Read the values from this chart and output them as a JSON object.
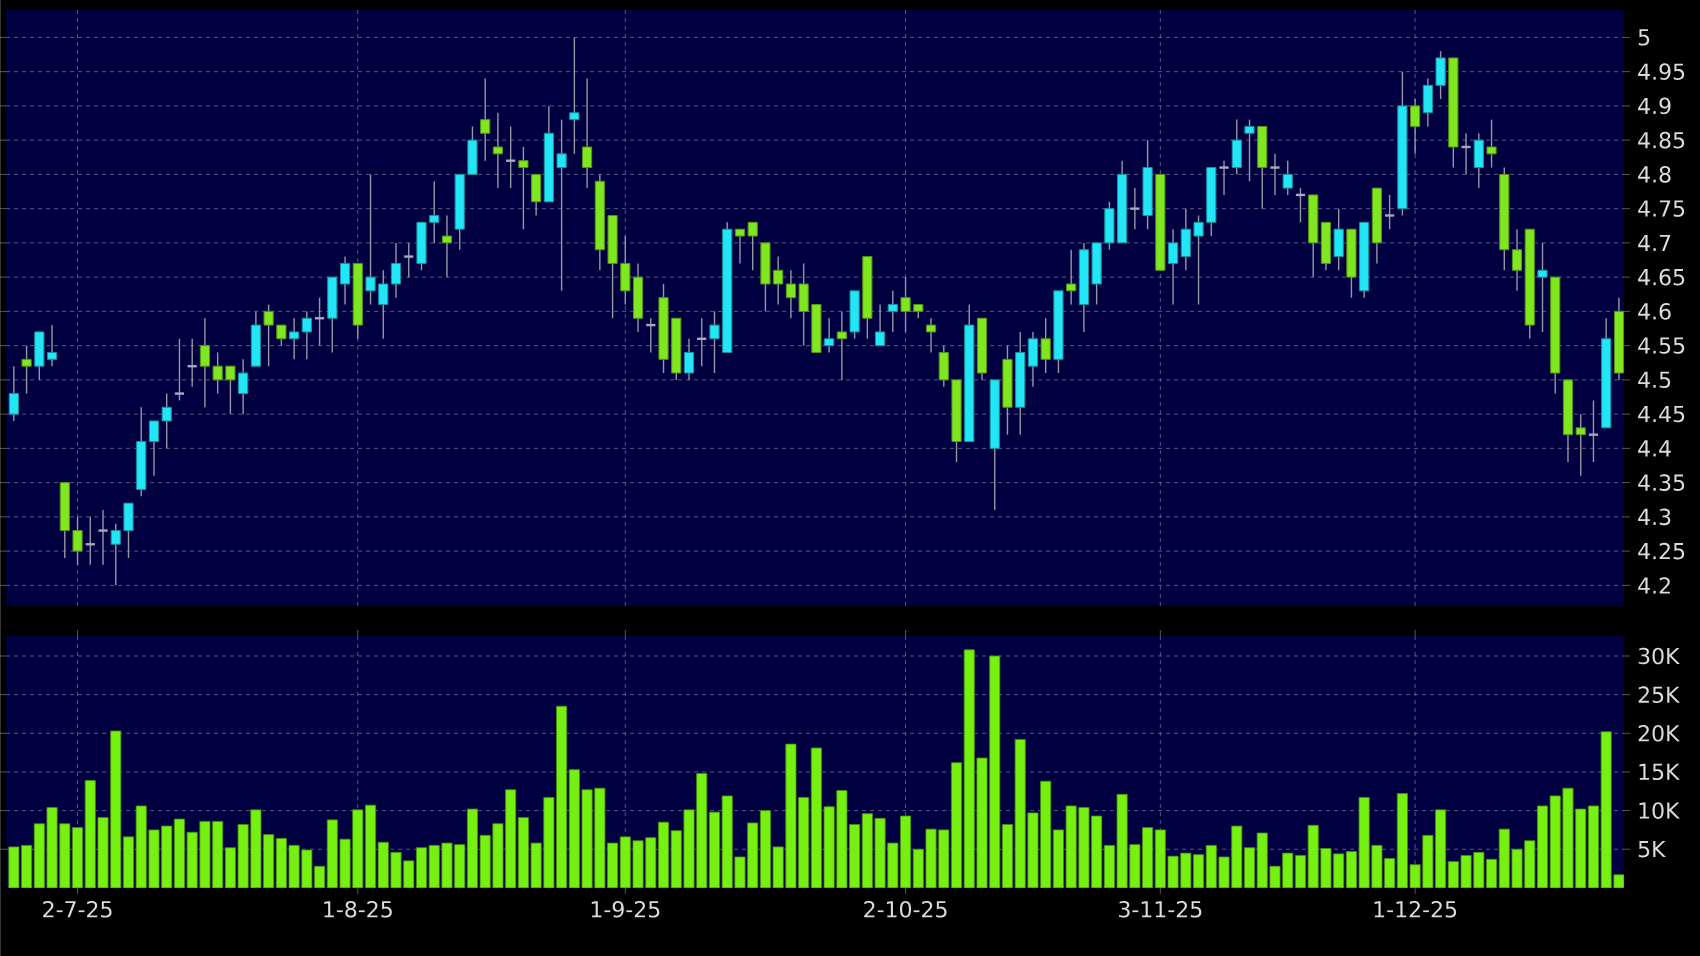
{
  "chart_data": [
    {
      "type": "candlestick",
      "tick_labels": "y",
      "grid": true,
      "categories": [
        null,
        null,
        null,
        null,
        null,
        null,
        null,
        null,
        null,
        null,
        null,
        null,
        null,
        null,
        null,
        null,
        null,
        null,
        null,
        null,
        null,
        null,
        null,
        null,
        null,
        null,
        null,
        null,
        null,
        null,
        null,
        null,
        null,
        null,
        null,
        null,
        null,
        null,
        null,
        null,
        null,
        null,
        null,
        null,
        null,
        null,
        null,
        null,
        null,
        null,
        null,
        null,
        null,
        null,
        null,
        null,
        null,
        null,
        null,
        null,
        null,
        null,
        null,
        null,
        null,
        null,
        null,
        null,
        null,
        null,
        null,
        null,
        null,
        null,
        null,
        null,
        null,
        null,
        null,
        null,
        null,
        null,
        null,
        null,
        null,
        null,
        null,
        null,
        null,
        null,
        null,
        null,
        null,
        null,
        null,
        null,
        null,
        null,
        null,
        null,
        null,
        null,
        null,
        null,
        null,
        null,
        null,
        null,
        null,
        null,
        null,
        null,
        null,
        null,
        null,
        null,
        null,
        null,
        null,
        null,
        null,
        null,
        null,
        null,
        null,
        null,
        null
      ],
      "ohlc": [
        [
          4.45,
          4.52,
          4.44,
          4.48
        ],
        [
          4.53,
          4.55,
          4.48,
          4.52
        ],
        [
          4.52,
          4.57,
          4.5,
          4.57
        ],
        [
          4.53,
          4.58,
          4.52,
          4.54
        ],
        [
          4.35,
          4.35,
          4.24,
          4.28
        ],
        [
          4.28,
          4.3,
          4.23,
          4.25
        ],
        [
          4.26,
          4.3,
          4.23,
          4.26
        ],
        [
          4.28,
          4.31,
          4.23,
          4.28
        ],
        [
          4.26,
          4.29,
          4.2,
          4.28
        ],
        [
          4.28,
          4.32,
          4.24,
          4.32
        ],
        [
          4.34,
          4.46,
          4.33,
          4.41
        ],
        [
          4.41,
          4.44,
          4.36,
          4.44
        ],
        [
          4.44,
          4.48,
          4.4,
          4.46
        ],
        [
          4.48,
          4.56,
          4.47,
          4.48
        ],
        [
          4.52,
          4.56,
          4.49,
          4.52
        ],
        [
          4.55,
          4.59,
          4.46,
          4.52
        ],
        [
          4.52,
          4.54,
          4.48,
          4.5
        ],
        [
          4.52,
          4.52,
          4.45,
          4.5
        ],
        [
          4.48,
          4.53,
          4.45,
          4.51
        ],
        [
          4.52,
          4.6,
          4.52,
          4.58
        ],
        [
          4.6,
          4.61,
          4.52,
          4.58
        ],
        [
          4.58,
          4.58,
          4.55,
          4.56
        ],
        [
          4.56,
          4.59,
          4.53,
          4.57
        ],
        [
          4.57,
          4.6,
          4.53,
          4.59
        ],
        [
          4.59,
          4.62,
          4.55,
          4.59
        ],
        [
          4.59,
          4.65,
          4.54,
          4.65
        ],
        [
          4.64,
          4.68,
          4.61,
          4.67
        ],
        [
          4.67,
          4.67,
          4.56,
          4.58
        ],
        [
          4.63,
          4.8,
          4.61,
          4.65
        ],
        [
          4.61,
          4.66,
          4.56,
          4.64
        ],
        [
          4.64,
          4.7,
          4.62,
          4.67
        ],
        [
          4.68,
          4.7,
          4.65,
          4.68
        ],
        [
          4.67,
          4.73,
          4.66,
          4.73
        ],
        [
          4.73,
          4.79,
          4.7,
          4.74
        ],
        [
          4.71,
          4.74,
          4.65,
          4.7
        ],
        [
          4.72,
          4.8,
          4.69,
          4.8
        ],
        [
          4.8,
          4.87,
          4.8,
          4.85
        ],
        [
          4.88,
          4.94,
          4.82,
          4.86
        ],
        [
          4.84,
          4.89,
          4.78,
          4.83
        ],
        [
          4.82,
          4.87,
          4.78,
          4.82
        ],
        [
          4.82,
          4.84,
          4.72,
          4.81
        ],
        [
          4.8,
          4.8,
          4.74,
          4.76
        ],
        [
          4.76,
          4.9,
          4.76,
          4.86
        ],
        [
          4.81,
          4.88,
          4.63,
          4.83
        ],
        [
          4.88,
          5.0,
          4.83,
          4.89
        ],
        [
          4.84,
          4.94,
          4.78,
          4.81
        ],
        [
          4.79,
          4.8,
          4.66,
          4.69
        ],
        [
          4.74,
          4.74,
          4.59,
          4.67
        ],
        [
          4.67,
          4.71,
          4.61,
          4.63
        ],
        [
          4.65,
          4.67,
          4.57,
          4.59
        ],
        [
          4.58,
          4.59,
          4.54,
          4.58
        ],
        [
          4.62,
          4.64,
          4.51,
          4.53
        ],
        [
          4.59,
          4.59,
          4.5,
          4.51
        ],
        [
          4.51,
          4.56,
          4.5,
          4.54
        ],
        [
          4.56,
          4.59,
          4.52,
          4.56
        ],
        [
          4.56,
          4.6,
          4.51,
          4.58
        ],
        [
          4.54,
          4.73,
          4.54,
          4.72
        ],
        [
          4.72,
          4.72,
          4.67,
          4.71
        ],
        [
          4.73,
          4.73,
          4.66,
          4.71
        ],
        [
          4.7,
          4.7,
          4.6,
          4.64
        ],
        [
          4.66,
          4.68,
          4.61,
          4.64
        ],
        [
          4.64,
          4.66,
          4.59,
          4.62
        ],
        [
          4.64,
          4.67,
          4.55,
          4.6
        ],
        [
          4.61,
          4.61,
          4.54,
          4.54
        ],
        [
          4.55,
          4.59,
          4.54,
          4.56
        ],
        [
          4.57,
          4.6,
          4.5,
          4.56
        ],
        [
          4.57,
          4.63,
          4.56,
          4.63
        ],
        [
          4.68,
          4.68,
          4.56,
          4.59
        ],
        [
          4.55,
          4.61,
          4.55,
          4.57
        ],
        [
          4.6,
          4.63,
          4.57,
          4.61
        ],
        [
          4.62,
          4.65,
          4.57,
          4.6
        ],
        [
          4.61,
          4.61,
          4.59,
          4.6
        ],
        [
          4.58,
          4.59,
          4.54,
          4.57
        ],
        [
          4.54,
          4.55,
          4.49,
          4.5
        ],
        [
          4.5,
          4.5,
          4.38,
          4.41
        ],
        [
          4.41,
          4.61,
          4.41,
          4.58
        ],
        [
          4.59,
          4.59,
          4.5,
          4.51
        ],
        [
          4.4,
          4.5,
          4.31,
          4.5
        ],
        [
          4.53,
          4.55,
          4.42,
          4.46
        ],
        [
          4.46,
          4.57,
          4.42,
          4.54
        ],
        [
          4.52,
          4.57,
          4.49,
          4.56
        ],
        [
          4.56,
          4.59,
          4.51,
          4.53
        ],
        [
          4.53,
          4.63,
          4.51,
          4.63
        ],
        [
          4.64,
          4.69,
          4.61,
          4.63
        ],
        [
          4.61,
          4.7,
          4.57,
          4.69
        ],
        [
          4.64,
          4.7,
          4.61,
          4.7
        ],
        [
          4.7,
          4.76,
          4.69,
          4.75
        ],
        [
          4.7,
          4.82,
          4.7,
          4.8
        ],
        [
          4.75,
          4.78,
          4.72,
          4.75
        ],
        [
          4.74,
          4.85,
          4.72,
          4.81
        ],
        [
          4.8,
          4.8,
          4.66,
          4.66
        ],
        [
          4.67,
          4.72,
          4.61,
          4.7
        ],
        [
          4.68,
          4.75,
          4.66,
          4.72
        ],
        [
          4.71,
          4.74,
          4.61,
          4.73
        ],
        [
          4.73,
          4.81,
          4.71,
          4.81
        ],
        [
          4.81,
          4.82,
          4.77,
          4.81
        ],
        [
          4.81,
          4.88,
          4.8,
          4.85
        ],
        [
          4.86,
          4.88,
          4.79,
          4.87
        ],
        [
          4.87,
          4.87,
          4.75,
          4.81
        ],
        [
          4.81,
          4.83,
          4.77,
          4.81
        ],
        [
          4.78,
          4.82,
          4.77,
          4.8
        ],
        [
          4.77,
          4.78,
          4.73,
          4.77
        ],
        [
          4.77,
          4.77,
          4.65,
          4.7
        ],
        [
          4.73,
          4.73,
          4.66,
          4.67
        ],
        [
          4.68,
          4.75,
          4.66,
          4.72
        ],
        [
          4.72,
          4.72,
          4.62,
          4.65
        ],
        [
          4.63,
          4.73,
          4.62,
          4.73
        ],
        [
          4.78,
          4.78,
          4.67,
          4.7
        ],
        [
          4.74,
          4.77,
          4.72,
          4.74
        ],
        [
          4.75,
          4.95,
          4.74,
          4.9
        ],
        [
          4.9,
          4.91,
          4.83,
          4.87
        ],
        [
          4.89,
          4.94,
          4.87,
          4.93
        ],
        [
          4.93,
          4.98,
          4.91,
          4.97
        ],
        [
          4.97,
          4.97,
          4.81,
          4.84
        ],
        [
          4.84,
          4.86,
          4.8,
          4.84
        ],
        [
          4.81,
          4.86,
          4.78,
          4.85
        ],
        [
          4.84,
          4.88,
          4.81,
          4.83
        ],
        [
          4.8,
          4.81,
          4.66,
          4.69
        ],
        [
          4.69,
          4.72,
          4.63,
          4.66
        ],
        [
          4.72,
          4.72,
          4.56,
          4.58
        ],
        [
          4.65,
          4.7,
          4.57,
          4.66
        ],
        [
          4.65,
          4.65,
          4.48,
          4.51
        ],
        [
          4.5,
          4.5,
          4.38,
          4.42
        ],
        [
          4.43,
          4.45,
          4.36,
          4.42
        ],
        [
          4.42,
          4.47,
          4.38,
          4.42
        ],
        [
          4.43,
          4.59,
          4.43,
          4.56
        ],
        [
          4.6,
          4.62,
          4.5,
          4.51
        ]
      ],
      "colors": [
        "#22e5f5",
        "#7fe61f",
        "#22e5f5",
        "#22e5f5",
        "#7fe61f",
        "#7fe61f",
        "#a8a8c0",
        "#a8a8c0",
        "#22e5f5",
        "#22e5f5",
        "#22e5f5",
        "#22e5f5",
        "#22e5f5",
        "#a8a8c0",
        "#a8a8c0",
        "#7fe61f",
        "#7fe61f",
        "#7fe61f",
        "#22e5f5",
        "#22e5f5",
        "#7fe61f",
        "#7fe61f",
        "#22e5f5",
        "#22e5f5",
        "#a8a8c0",
        "#22e5f5",
        "#22e5f5",
        "#7fe61f",
        "#22e5f5",
        "#22e5f5",
        "#22e5f5",
        "#a8a8c0",
        "#22e5f5",
        "#22e5f5",
        "#7fe61f",
        "#22e5f5",
        "#22e5f5",
        "#7fe61f",
        "#7fe61f",
        "#a8a8c0",
        "#7fe61f",
        "#7fe61f",
        "#22e5f5",
        "#22e5f5",
        "#22e5f5",
        "#7fe61f",
        "#7fe61f",
        "#7fe61f",
        "#7fe61f",
        "#7fe61f",
        "#a8a8c0",
        "#7fe61f",
        "#7fe61f",
        "#22e5f5",
        "#a8a8c0",
        "#22e5f5",
        "#22e5f5",
        "#7fe61f",
        "#7fe61f",
        "#7fe61f",
        "#7fe61f",
        "#7fe61f",
        "#7fe61f",
        "#7fe61f",
        "#22e5f5",
        "#7fe61f",
        "#22e5f5",
        "#7fe61f",
        "#22e5f5",
        "#22e5f5",
        "#7fe61f",
        "#7fe61f",
        "#7fe61f",
        "#7fe61f",
        "#7fe61f",
        "#22e5f5",
        "#7fe61f",
        "#22e5f5",
        "#7fe61f",
        "#22e5f5",
        "#22e5f5",
        "#7fe61f",
        "#22e5f5",
        "#7fe61f",
        "#22e5f5",
        "#22e5f5",
        "#22e5f5",
        "#22e5f5",
        "#a8a8c0",
        "#22e5f5",
        "#7fe61f",
        "#22e5f5",
        "#22e5f5",
        "#22e5f5",
        "#22e5f5",
        "#a8a8c0",
        "#22e5f5",
        "#22e5f5",
        "#7fe61f",
        "#a8a8c0",
        "#22e5f5",
        "#a8a8c0",
        "#7fe61f",
        "#7fe61f",
        "#22e5f5",
        "#7fe61f",
        "#22e5f5",
        "#7fe61f",
        "#a8a8c0",
        "#22e5f5",
        "#7fe61f",
        "#22e5f5",
        "#22e5f5",
        "#7fe61f",
        "#a8a8c0",
        "#22e5f5",
        "#7fe61f",
        "#7fe61f",
        "#7fe61f",
        "#7fe61f",
        "#22e5f5",
        "#7fe61f",
        "#7fe61f",
        "#7fe61f",
        "#a8a8c0",
        "#22e5f5",
        "#7fe61f"
      ],
      "ylim": [
        4.17,
        5.04
      ],
      "yticks": [
        4.2,
        4.25,
        4.3,
        4.35,
        4.4,
        4.45,
        4.5,
        4.55,
        4.6,
        4.65,
        4.7,
        4.75,
        4.8,
        4.85,
        4.9,
        4.95,
        5
      ]
    },
    {
      "type": "bar",
      "grid": true,
      "color": "#76f010",
      "categories": [
        null,
        null,
        null,
        null,
        null,
        "2-7-25",
        null,
        null,
        null,
        null,
        null,
        null,
        null,
        null,
        null,
        null,
        null,
        null,
        null,
        null,
        null,
        null,
        null,
        null,
        null,
        null,
        null,
        "1-8-25",
        null,
        null,
        null,
        null,
        null,
        null,
        null,
        null,
        null,
        null,
        null,
        null,
        null,
        null,
        null,
        null,
        null,
        null,
        null,
        null,
        "1-9-25",
        null,
        null,
        null,
        null,
        null,
        null,
        null,
        null,
        null,
        null,
        null,
        null,
        null,
        null,
        null,
        null,
        null,
        null,
        null,
        null,
        null,
        "2-10-25",
        null,
        null,
        null,
        null,
        null,
        null,
        null,
        null,
        null,
        null,
        null,
        null,
        null,
        null,
        null,
        null,
        null,
        null,
        null,
        "3-11-25",
        null,
        null,
        null,
        null,
        null,
        null,
        null,
        null,
        null,
        null,
        null,
        null,
        null,
        null,
        null,
        null,
        null,
        null,
        null,
        "1-12-25",
        null,
        null,
        null,
        null,
        null,
        null,
        null,
        null,
        null,
        null,
        null,
        null,
        null,
        null,
        null,
        null
      ],
      "values": [
        5300,
        5500,
        8300,
        10400,
        8300,
        7800,
        13900,
        9100,
        20300,
        6600,
        10600,
        7500,
        8000,
        8900,
        7200,
        8600,
        8600,
        5200,
        8200,
        10100,
        6900,
        6400,
        5500,
        4900,
        2800,
        8800,
        6300,
        10100,
        10700,
        5900,
        4600,
        3500,
        5200,
        5500,
        5800,
        5600,
        10200,
        6800,
        8300,
        12700,
        9100,
        5800,
        11700,
        23500,
        15300,
        12700,
        12900,
        5800,
        6600,
        6100,
        6500,
        8500,
        7400,
        10100,
        14800,
        9800,
        11900,
        4000,
        8400,
        10000,
        5300,
        18600,
        11700,
        18100,
        10500,
        12600,
        8200,
        9600,
        9000,
        5800,
        9300,
        5000,
        7600,
        7500,
        16200,
        30800,
        16800,
        30000,
        8200,
        19200,
        9700,
        13800,
        7500,
        10600,
        10400,
        9300,
        5500,
        12100,
        5600,
        7800,
        7500,
        4100,
        4500,
        4300,
        5500,
        4000,
        8000,
        5200,
        7100,
        2800,
        4500,
        4200,
        8100,
        5100,
        4400,
        4700,
        11700,
        5500,
        3800,
        12200,
        3000,
        6800,
        10100,
        3400,
        4200,
        4600,
        3700,
        7600,
        5000,
        6100,
        10600,
        11900,
        12900,
        10200,
        10600,
        20200,
        1700
      ],
      "ylim": [
        0,
        32600
      ],
      "yticks": [
        {
          "value": 5000,
          "label": "5K"
        },
        {
          "value": 10000,
          "label": "10K"
        },
        {
          "value": 15000,
          "label": "15K"
        },
        {
          "value": 20000,
          "label": "20K"
        },
        {
          "value": 25000,
          "label": "25K"
        },
        {
          "value": 30000,
          "label": "30K"
        }
      ]
    }
  ]
}
